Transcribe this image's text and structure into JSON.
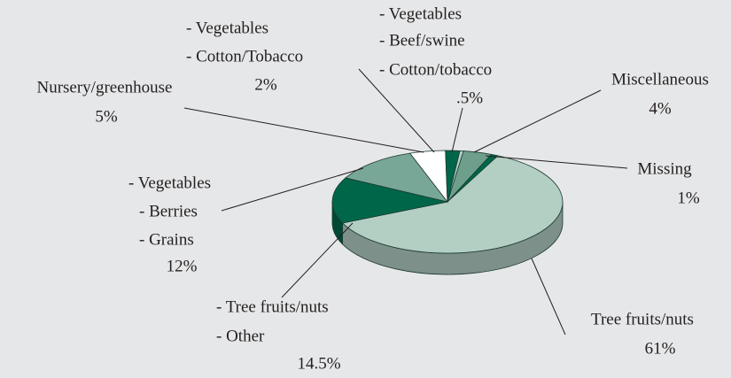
{
  "chart_data": {
    "type": "pie",
    "categories": [
      [
        "Miscellaneous"
      ],
      [
        "Missing"
      ],
      [
        "Tree fruits/nuts"
      ],
      [
        "- Tree fruits/nuts",
        "- Other"
      ],
      [
        "- Vegetables",
        "- Berries",
        "- Grains"
      ],
      [
        "Nursery/greenhouse"
      ],
      [
        "- Vegetables",
        "- Cotton/Tobacco"
      ],
      [
        "- Vegetables",
        "- Beef/swine",
        "- Cotton/tobacco"
      ]
    ],
    "values": [
      4,
      1,
      61,
      14.5,
      12,
      5,
      2,
      0.5
    ],
    "value_labels": [
      "4%",
      "1%",
      "61%",
      "14.5%",
      "12%",
      "5%",
      "2%",
      ".5%"
    ],
    "colors": [
      "#6e9f8d",
      "#00664a",
      "#b3cec3",
      "#00664a",
      "#79a797",
      "#ffffff",
      "#00664a",
      "#b3cec3"
    ]
  }
}
